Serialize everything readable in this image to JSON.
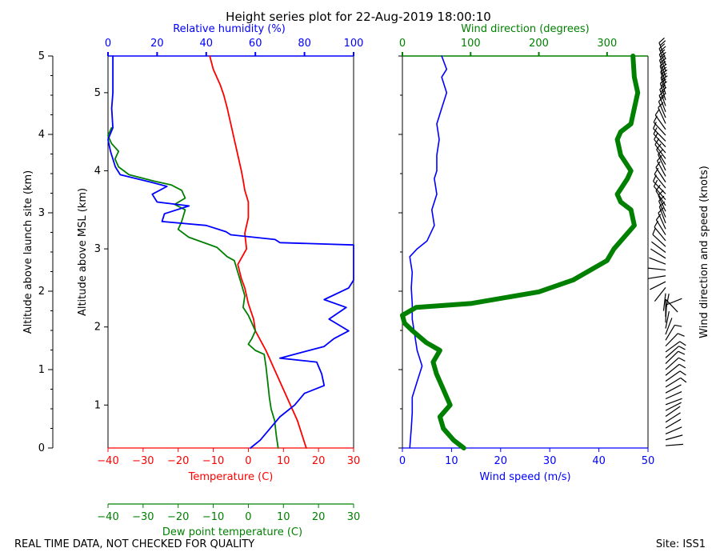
{
  "title": "Height series plot for 22-Aug-2019 18:00:10",
  "footer": {
    "left": "REAL TIME DATA, NOT CHECKED FOR QUALITY",
    "right": "Site: ISS1"
  },
  "colors": {
    "temperature": "#ff0000",
    "dewpoint": "#008000",
    "rh": "#0000ff",
    "wind_speed": "#0000ff",
    "wind_dir": "#008000",
    "axis": "#000000"
  },
  "chart_data": [
    {
      "type": "line",
      "panel": "thermodynamic",
      "axes": {
        "outer_left": {
          "label": "Altitude above launch site (km)",
          "ylim": [
            0,
            5
          ],
          "ticks": [
            0,
            1,
            2,
            3,
            4,
            5
          ],
          "tick_labels": [
            "0",
            "1",
            "2",
            "3",
            "4",
            "5"
          ]
        },
        "inner_left": {
          "label": "Altitude above MSL (km)",
          "ylim": [
            0.45,
            5.47
          ],
          "ticks": [
            1,
            2,
            3,
            4,
            5
          ],
          "tick_labels": [
            "1",
            "2",
            "3",
            "4",
            "5"
          ]
        },
        "bottom": {
          "label": "Temperature (C)",
          "xlim": [
            -40,
            30
          ],
          "ticks": [
            -40,
            -30,
            -20,
            -10,
            0,
            10,
            20,
            30
          ],
          "tick_labels": [
            "−40",
            "−30",
            "−20",
            "−10",
            "0",
            "10",
            "20",
            "30"
          ]
        },
        "bottom2": {
          "label": "Dew point temperature (C)",
          "xlim": [
            -40,
            30
          ],
          "ticks": [
            -40,
            -30,
            -20,
            -10,
            0,
            10,
            20,
            30
          ],
          "tick_labels": [
            "−40",
            "−30",
            "−20",
            "−10",
            "0",
            "10",
            "20",
            "30"
          ]
        },
        "top": {
          "label": "Relative humidity (%)",
          "xlim": [
            0,
            100
          ],
          "ticks": [
            0,
            20,
            40,
            60,
            80,
            100
          ],
          "tick_labels": [
            "0",
            "20",
            "40",
            "60",
            "80",
            "100"
          ]
        }
      },
      "series": [
        {
          "name": "Temperature",
          "x_axis": "bottom",
          "points": [
            [
              16.5,
              0.45
            ],
            [
              14,
              0.8
            ],
            [
              11,
              1.1
            ],
            [
              8,
              1.4
            ],
            [
              5,
              1.7
            ],
            [
              2,
              1.95
            ],
            [
              1.5,
              2.1
            ],
            [
              0,
              2.3
            ],
            [
              -1,
              2.5
            ],
            [
              -2,
              2.62
            ],
            [
              -3,
              2.8
            ],
            [
              -0.5,
              3.0
            ],
            [
              -1,
              3.2
            ],
            [
              0,
              3.4
            ],
            [
              0,
              3.6
            ],
            [
              -1,
              3.75
            ],
            [
              -1.5,
              3.88
            ],
            [
              -2,
              4.0
            ],
            [
              -3,
              4.2
            ],
            [
              -4,
              4.4
            ],
            [
              -5,
              4.6
            ],
            [
              -6,
              4.8
            ],
            [
              -7,
              4.97
            ],
            [
              -8,
              5.1
            ],
            [
              -10,
              5.3
            ],
            [
              -11,
              5.47
            ]
          ]
        },
        {
          "name": "Dew point",
          "x_axis": "bottom2",
          "points": [
            [
              8.5,
              0.45
            ],
            [
              8,
              0.6
            ],
            [
              7.5,
              0.8
            ],
            [
              6.5,
              0.95
            ],
            [
              6,
              1.1
            ],
            [
              5.5,
              1.3
            ],
            [
              5,
              1.5
            ],
            [
              4.5,
              1.65
            ],
            [
              2,
              1.7
            ],
            [
              0,
              1.78
            ],
            [
              1,
              1.85
            ],
            [
              2,
              1.95
            ],
            [
              1,
              2.05
            ],
            [
              0,
              2.15
            ],
            [
              -1.5,
              2.25
            ],
            [
              -1,
              2.4
            ],
            [
              -2,
              2.55
            ],
            [
              -3,
              2.7
            ],
            [
              -4,
              2.85
            ],
            [
              -6,
              2.9
            ],
            [
              -9,
              3.02
            ],
            [
              -17,
              3.15
            ],
            [
              -20,
              3.25
            ],
            [
              -19,
              3.35
            ],
            [
              -18,
              3.5
            ],
            [
              -21,
              3.57
            ],
            [
              -18,
              3.65
            ],
            [
              -19,
              3.75
            ],
            [
              -22,
              3.82
            ],
            [
              -27,
              3.87
            ],
            [
              -34,
              3.95
            ],
            [
              -37,
              4.05
            ],
            [
              -38,
              4.15
            ],
            [
              -37,
              4.25
            ],
            [
              -39,
              4.35
            ],
            [
              -40,
              4.45
            ],
            [
              -39,
              4.55
            ]
          ]
        },
        {
          "name": "Relative humidity",
          "x_axis": "top",
          "points": [
            [
              58,
              0.45
            ],
            [
              62,
              0.55
            ],
            [
              66,
              0.7
            ],
            [
              70,
              0.85
            ],
            [
              76,
              1.0
            ],
            [
              80,
              1.15
            ],
            [
              88,
              1.25
            ],
            [
              87,
              1.4
            ],
            [
              85,
              1.55
            ],
            [
              70,
              1.6
            ],
            [
              88,
              1.75
            ],
            [
              92,
              1.85
            ],
            [
              98,
              1.95
            ],
            [
              90,
              2.1
            ],
            [
              97,
              2.25
            ],
            [
              88,
              2.35
            ],
            [
              98,
              2.5
            ],
            [
              100,
              2.6
            ],
            [
              100,
              3.05
            ],
            [
              70,
              3.08
            ],
            [
              68,
              3.12
            ],
            [
              50,
              3.18
            ],
            [
              48,
              3.22
            ],
            [
              40,
              3.3
            ],
            [
              22,
              3.35
            ],
            [
              23,
              3.45
            ],
            [
              33,
              3.55
            ],
            [
              20,
              3.6
            ],
            [
              18,
              3.7
            ],
            [
              24,
              3.8
            ],
            [
              18,
              3.85
            ],
            [
              5,
              3.95
            ],
            [
              3,
              4.05
            ],
            [
              1,
              4.25
            ],
            [
              0,
              4.4
            ],
            [
              2,
              4.55
            ],
            [
              1.5,
              4.8
            ],
            [
              2,
              5.0
            ],
            [
              2,
              5.47
            ]
          ]
        }
      ]
    },
    {
      "type": "line",
      "panel": "wind",
      "axes": {
        "bottom": {
          "label": "Wind speed (m/s)",
          "xlim": [
            0,
            50
          ],
          "ticks": [
            0,
            10,
            20,
            30,
            40,
            50
          ],
          "tick_labels": [
            "0",
            "10",
            "20",
            "30",
            "40",
            "50"
          ]
        },
        "top": {
          "label": "Wind direction (degrees)",
          "xlim": [
            0,
            360
          ],
          "ticks": [
            0,
            100,
            200,
            300
          ],
          "tick_labels": [
            "0",
            "100",
            "200",
            "300"
          ]
        },
        "right": {
          "label": "Wind direction and speed (knots)"
        }
      },
      "series": [
        {
          "name": "Wind speed",
          "x_axis": "bottom",
          "points": [
            [
              1.5,
              0.45
            ],
            [
              1.8,
              0.7
            ],
            [
              2,
              0.9
            ],
            [
              2,
              1.1
            ],
            [
              3,
              1.3
            ],
            [
              4,
              1.5
            ],
            [
              3,
              1.7
            ],
            [
              2.5,
              1.9
            ],
            [
              2,
              2.1
            ],
            [
              2,
              2.3
            ],
            [
              1.8,
              2.5
            ],
            [
              2,
              2.7
            ],
            [
              1.5,
              2.9
            ],
            [
              3,
              3.0
            ],
            [
              5,
              3.1
            ],
            [
              6.5,
              3.3
            ],
            [
              6,
              3.5
            ],
            [
              7,
              3.7
            ],
            [
              6.5,
              3.9
            ],
            [
              7,
              4.0
            ],
            [
              7,
              4.2
            ],
            [
              7.5,
              4.4
            ],
            [
              7,
              4.6
            ],
            [
              8,
              4.8
            ],
            [
              9,
              5.0
            ],
            [
              8,
              5.2
            ],
            [
              9,
              5.3
            ],
            [
              8,
              5.47
            ]
          ]
        },
        {
          "name": "Wind direction",
          "x_axis": "top",
          "points": [
            [
              90,
              0.45
            ],
            [
              75,
              0.55
            ],
            [
              60,
              0.7
            ],
            [
              55,
              0.85
            ],
            [
              70,
              1.0
            ],
            [
              60,
              1.2
            ],
            [
              50,
              1.4
            ],
            [
              45,
              1.55
            ],
            [
              55,
              1.7
            ],
            [
              35,
              1.8
            ],
            [
              15,
              1.95
            ],
            [
              3,
              2.05
            ],
            [
              0,
              2.15
            ],
            [
              20,
              2.25
            ],
            [
              100,
              2.3
            ],
            [
              200,
              2.45
            ],
            [
              250,
              2.6
            ],
            [
              300,
              2.85
            ],
            [
              310,
              3.0
            ],
            [
              340,
              3.3
            ],
            [
              335,
              3.5
            ],
            [
              320,
              3.6
            ],
            [
              315,
              3.7
            ],
            [
              330,
              3.9
            ],
            [
              335,
              4.0
            ],
            [
              320,
              4.2
            ],
            [
              315,
              4.4
            ],
            [
              320,
              4.5
            ],
            [
              335,
              4.6
            ],
            [
              340,
              4.8
            ],
            [
              345,
              5.0
            ],
            [
              340,
              5.2
            ],
            [
              338,
              5.47
            ]
          ]
        }
      ]
    }
  ]
}
